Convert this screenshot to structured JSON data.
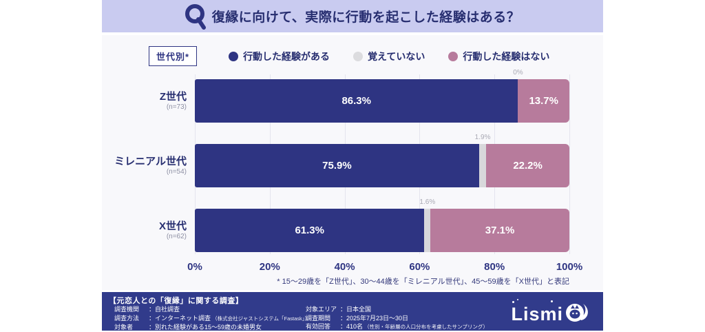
{
  "header": {
    "q_mark": "Q",
    "title": "復縁に向けて、実際に行動を起こした経験はある？"
  },
  "legend": {
    "box_label": "世代別*",
    "items": [
      {
        "label": "行動した経験がある",
        "color": "#2e3482"
      },
      {
        "label": "覚えていない",
        "color": "#dcdcdf"
      },
      {
        "label": "行動した経験はない",
        "color": "#b77b9c"
      }
    ]
  },
  "chart_data": {
    "type": "bar",
    "stacked": true,
    "orientation": "horizontal",
    "categories": [
      "Z世代",
      "ミレニアル世代",
      "X世代"
    ],
    "n_labels": [
      "(n=73)",
      "(n=54)",
      "(n=62)"
    ],
    "series": [
      {
        "name": "行動した経験がある",
        "color": "#2e3482",
        "values": [
          86.3,
          75.9,
          61.3
        ]
      },
      {
        "name": "覚えていない",
        "color": "#d8d8db",
        "values": [
          0,
          1.9,
          1.6
        ]
      },
      {
        "name": "行動した経験はない",
        "color": "#b77b9c",
        "values": [
          13.7,
          22.2,
          37.1
        ]
      }
    ],
    "top_labels": [
      "0%",
      "1.9%",
      "1.6%"
    ],
    "x_ticks": [
      "0%",
      "20%",
      "40%",
      "60%",
      "80%",
      "100%"
    ],
    "xlim": [
      0,
      100
    ],
    "grid": true,
    "legend_position": "top"
  },
  "footnote": "* 15〜29歳を「Z世代」、30〜44歳を「ミレニアル世代」、45〜59歳を「X世代」と表記",
  "footer": {
    "survey_title": "【元恋人との「復縁」に関する調査】",
    "left_rows": [
      {
        "label": "調査機関",
        "sep": "：",
        "value": "自社調査",
        "note": ""
      },
      {
        "label": "調査方法",
        "sep": "：",
        "value": "インターネット調査",
        "note": "（株式会社ジャストシステム「Fastask」）"
      },
      {
        "label": "対象者",
        "sep": "：",
        "value": "別れた経験がある15〜59歳の未婚男女",
        "note": ""
      }
    ],
    "right_rows": [
      {
        "label": "対象エリア",
        "sep": "：",
        "value": "日本全国",
        "note": ""
      },
      {
        "label": "調査期間",
        "sep": "：",
        "value": "2025年7月23日〜30日",
        "note": ""
      },
      {
        "label": "有効回答",
        "sep": "：",
        "value": "410名",
        "note": "（性別・年齢層の人口分布を考慮したサンプリング）"
      }
    ],
    "logo_text": "Lismi"
  },
  "colors": {
    "header_bg": "#c9cbf0",
    "chart_bg": "#f8f8fb",
    "footer_bg": "#313b8b",
    "navy": "#2e3482",
    "mauve": "#b77b9c",
    "gray": "#d8d8db",
    "title_text": "#272e70"
  }
}
